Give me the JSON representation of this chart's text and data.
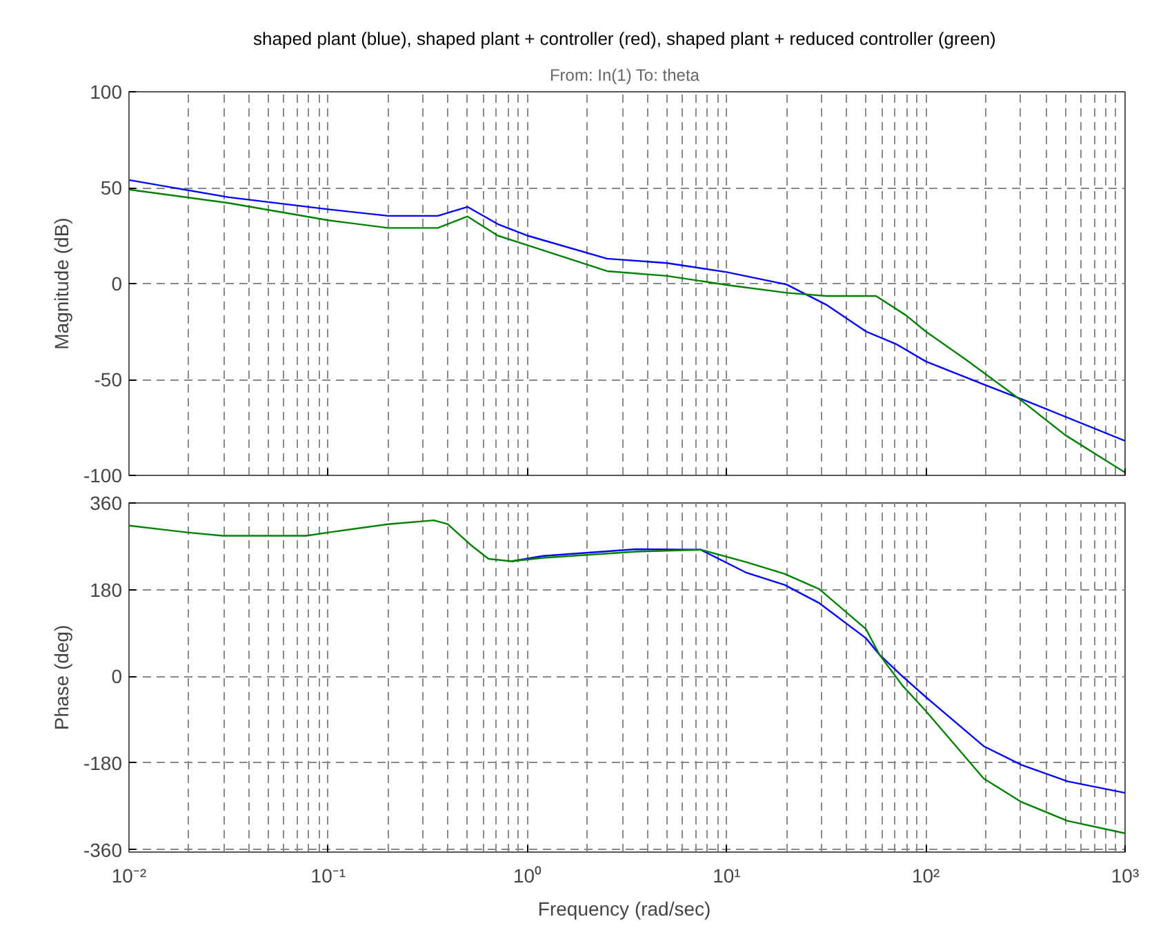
{
  "chart_data": [
    {
      "type": "line",
      "title": "shaped plant (blue),  shaped plant + controller (red), shaped plant + reduced controller (green)",
      "subtitle": "From: In(1)  To: theta",
      "ylabel": "Magnitude (dB)",
      "log": "x",
      "grid": true,
      "tick_labels": "y",
      "line_style": "solid",
      "xlim": [
        0.01,
        1000
      ],
      "xticks": [
        {
          "value": 0.01,
          "label": null
        },
        {
          "value": 0.1,
          "label": null
        },
        {
          "value": 1,
          "label": null
        },
        {
          "value": 10,
          "label": null
        },
        {
          "value": 100,
          "label": null
        },
        {
          "value": 1000,
          "label": null
        }
      ],
      "ylim": [
        -100,
        100
      ],
      "yticks": [
        -100,
        -50,
        0,
        50,
        100
      ],
      "series": [
        {
          "color": "#0000ff",
          "x": [
            0.01,
            0.0316,
            0.1,
            0.2,
            0.355,
            0.5,
            0.71,
            1,
            2.51,
            5.01,
            10,
            20,
            31.6,
            50.1,
            70.8,
            100,
            200,
            316,
            1000
          ],
          "values": [
            54,
            45,
            38.7,
            35.3,
            35.3,
            40,
            31,
            25,
            13,
            10.7,
            6,
            -0.5,
            -11,
            -25,
            -31.5,
            -40.6,
            -53,
            -61,
            -82
          ]
        },
        {
          "color": "#008000",
          "x": [
            0.01,
            0.0316,
            0.1,
            0.2,
            0.355,
            0.5,
            0.71,
            1,
            2.51,
            5.01,
            10,
            20,
            31.6,
            56.2,
            79.4,
            100,
            158,
            302,
            501,
            1000
          ],
          "values": [
            49,
            42,
            33,
            29,
            29,
            35,
            25,
            20,
            6.5,
            4,
            -0.7,
            -4.8,
            -6.5,
            -6.5,
            -16.5,
            -25,
            -39.5,
            -61,
            -79,
            -98.5
          ]
        }
      ]
    },
    {
      "type": "line",
      "xlabel": "Frequency  (rad/sec)",
      "ylabel": "Phase (deg)",
      "log": "x",
      "grid": true,
      "line_style": "solid",
      "xlim": [
        0.01,
        1000
      ],
      "xticks": [
        {
          "value": 0.01,
          "label": "10⁻²"
        },
        {
          "value": 0.1,
          "label": "10⁻¹"
        },
        {
          "value": 1,
          "label": "10⁰"
        },
        {
          "value": 10,
          "label": "10¹"
        },
        {
          "value": 100,
          "label": "10²"
        },
        {
          "value": 1000,
          "label": "10³"
        }
      ],
      "ylim": [
        -365,
        360
      ],
      "yticks": [
        -360,
        -180,
        0,
        180,
        360
      ],
      "series": [
        {
          "color": "#0000ff",
          "x": [
            0.832,
            1.2,
            3.51,
            7.41,
            12.6,
            19.5,
            29.2,
            50.1,
            58.5,
            75.9,
            100,
            195,
            302,
            513,
            1000
          ],
          "values": [
            239,
            250,
            264,
            263,
            215,
            190,
            152,
            79,
            45,
            1,
            -43,
            -145,
            -184,
            -218,
            -242
          ]
        },
        {
          "color": "#008000",
          "x": [
            0.01,
            0.0195,
            0.0295,
            0.0776,
            0.105,
            0.2,
            0.339,
            0.398,
            0.519,
            0.638,
            0.832,
            1.2,
            3.51,
            7.41,
            12.6,
            19.5,
            29.2,
            50.1,
            58.5,
            75.9,
            100,
            195,
            302,
            513,
            1000
          ],
          "values": [
            313,
            299,
            292,
            292,
            300,
            316,
            324,
            316,
            273,
            244,
            239,
            246,
            259,
            263,
            237,
            213,
            181,
            98,
            45,
            -18,
            -72,
            -212,
            -261,
            -300,
            -326
          ]
        }
      ]
    }
  ]
}
